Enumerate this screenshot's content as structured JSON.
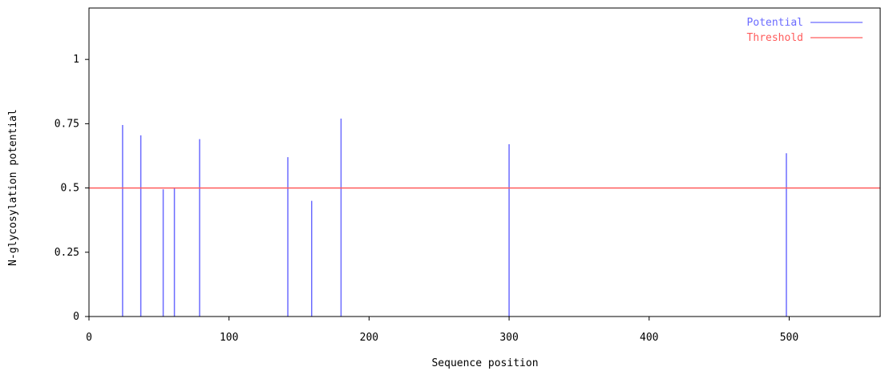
{
  "chart_data": {
    "type": "bar",
    "xlabel": "Sequence position",
    "ylabel": "N-glycosylation potential",
    "xlim": [
      0,
      565
    ],
    "ylim": [
      0,
      1.2
    ],
    "x_ticks": [
      {
        "value": 0,
        "label": "0"
      },
      {
        "value": 100,
        "label": "100"
      },
      {
        "value": 200,
        "label": "200"
      },
      {
        "value": 300,
        "label": "300"
      },
      {
        "value": 400,
        "label": "400"
      },
      {
        "value": 500,
        "label": "500"
      }
    ],
    "y_ticks": [
      {
        "value": 0,
        "label": "0"
      },
      {
        "value": 0.25,
        "label": "0.25"
      },
      {
        "value": 0.5,
        "label": "0.5"
      },
      {
        "value": 0.75,
        "label": "0.75"
      },
      {
        "value": 1,
        "label": "1"
      }
    ],
    "series": [
      {
        "name": "Potential",
        "color": "#6b6bff",
        "points": [
          {
            "x": 24,
            "y": 0.745
          },
          {
            "x": 37,
            "y": 0.705
          },
          {
            "x": 53,
            "y": 0.495
          },
          {
            "x": 61,
            "y": 0.5
          },
          {
            "x": 79,
            "y": 0.69
          },
          {
            "x": 142,
            "y": 0.62
          },
          {
            "x": 159,
            "y": 0.45
          },
          {
            "x": 180,
            "y": 0.77
          },
          {
            "x": 300,
            "y": 0.67
          },
          {
            "x": 498,
            "y": 0.635
          }
        ]
      }
    ],
    "threshold": {
      "name": "Threshold",
      "value": 0.5,
      "color": "#ff5c5c"
    },
    "legend": {
      "placement": "top-right"
    },
    "grid": false
  }
}
